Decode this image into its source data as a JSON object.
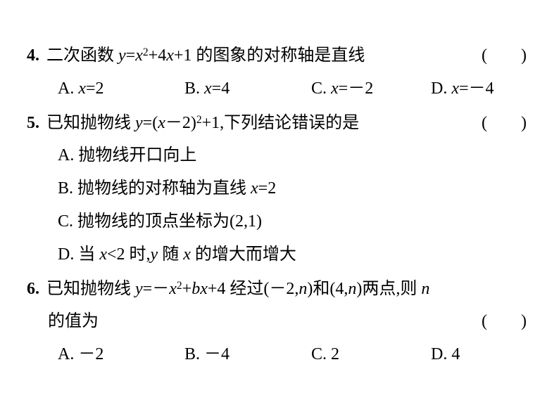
{
  "questions": [
    {
      "num": "4.",
      "stem": "二次函数 <span class=\"math-it\">y</span>=<span class=\"math-it\">x</span><span class=\"sup\">2</span>+4<span class=\"math-it\">x</span>+1 的图象的对称轴是直线",
      "paren": "(　　)",
      "optionsLayout": "row",
      "options": [
        "A. <span class=\"math-it\">x</span>=2",
        "B. <span class=\"math-it\">x</span>=4",
        "C. <span class=\"math-it\">x</span>=－2",
        "D. <span class=\"math-it\">x</span>=－4"
      ]
    },
    {
      "num": "5.",
      "stem": "已知抛物线 <span class=\"math-it\">y</span>=(<span class=\"math-it\">x</span>－2)<span class=\"sup\">2</span>+1,下列结论错误的是",
      "paren": "(　　)",
      "optionsLayout": "vertical",
      "options": [
        "A. 抛物线开口向上",
        "B. 抛物线的对称轴为直线 <span class=\"math-it\">x</span>=2",
        "C. 抛物线的顶点坐标为(2,1)",
        "D. 当 <span class=\"math-it\">x</span>&lt;2 时,<span class=\"math-it\">y</span> 随 <span class=\"math-it\">x</span> 的增大而增大"
      ]
    },
    {
      "num": "6.",
      "stem": "已知抛物线 <span class=\"math-it\">y</span>=－<span class=\"math-it\">x</span><span class=\"sup\">2</span>+<span class=\"math-it\">bx</span>+4 经过(－2,<span class=\"math-it\">n</span>)和(4,<span class=\"math-it\">n</span>)两点,则 <span class=\"math-it\">n</span>",
      "continuation": "的值为",
      "paren": "(　　)",
      "optionsLayout": "row",
      "options": [
        "A. －2",
        "B. －4",
        "C. 2",
        "D. 4"
      ]
    }
  ]
}
